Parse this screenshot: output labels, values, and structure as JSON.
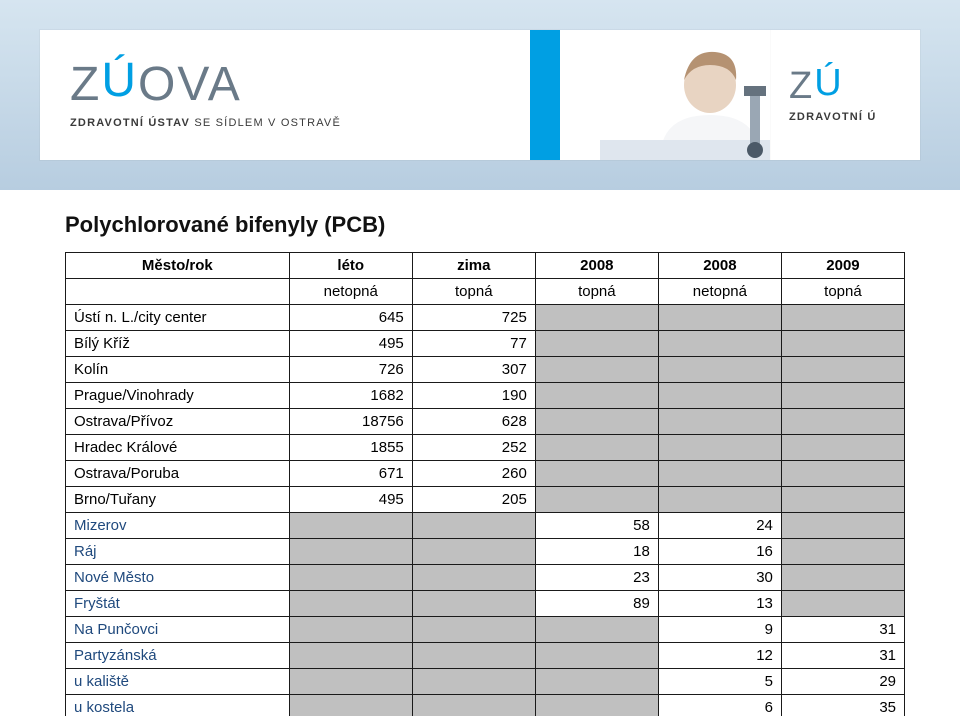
{
  "brand": {
    "logo_pre": "Z",
    "logo_dash": "ú",
    "logo_post": "OVA",
    "sub_strong": "ZDRAVOTNÍ ÚSTAV",
    "sub_rest": " SE SÍDLEM V OSTRAVĚ",
    "right_pre": "Z",
    "right_dash": "ú",
    "right_post": "",
    "right_sub_strong": "ZDRAVOTNÍ Ú",
    "right_sub_rest": ""
  },
  "title": "Polychlorované bifenyly (PCB)",
  "columns": {
    "c0": "Město/rok",
    "c1": "léto",
    "c2": "zima",
    "c3": "2008",
    "c4": "2008",
    "c5": "2009"
  },
  "subheader": {
    "c1": "netopná",
    "c2": "topná",
    "c3": "topná",
    "c4": "netopná",
    "c5": "topná"
  },
  "rows": [
    {
      "label": "Ústí n. L./city center",
      "v1": "645",
      "v2": "725",
      "g3": true,
      "g4": true,
      "g5": true,
      "blue": false
    },
    {
      "label": "Bílý Kříž",
      "v1": "495",
      "v2": "77",
      "g3": true,
      "g4": true,
      "g5": true,
      "blue": false
    },
    {
      "label": "Kolín",
      "v1": "726",
      "v2": "307",
      "g3": true,
      "g4": true,
      "g5": true,
      "blue": false
    },
    {
      "label": "Prague/Vinohrady",
      "v1": "1682",
      "v2": "190",
      "g3": true,
      "g4": true,
      "g5": true,
      "blue": false
    },
    {
      "label": "Ostrava/Přívoz",
      "v1": "18756",
      "v2": "628",
      "g3": true,
      "g4": true,
      "g5": true,
      "blue": false
    },
    {
      "label": "Hradec Králové",
      "v1": "1855",
      "v2": "252",
      "g3": true,
      "g4": true,
      "g5": true,
      "blue": false
    },
    {
      "label": "Ostrava/Poruba",
      "v1": "671",
      "v2": "260",
      "g3": true,
      "g4": true,
      "g5": true,
      "blue": false
    },
    {
      "label": "Brno/Tuřany",
      "v1": "495",
      "v2": "205",
      "g3": true,
      "g4": true,
      "g5": true,
      "blue": false
    },
    {
      "label": "Mizerov",
      "g1": true,
      "g2": true,
      "v3": "58",
      "v4": "24",
      "g5": true,
      "blue": true
    },
    {
      "label": "Ráj",
      "g1": true,
      "g2": true,
      "v3": "18",
      "v4": "16",
      "g5": true,
      "blue": true
    },
    {
      "label": "Nové Město",
      "g1": true,
      "g2": true,
      "v3": "23",
      "v4": "30",
      "g5": true,
      "blue": true
    },
    {
      "label": "Fryštát",
      "g1": true,
      "g2": true,
      "v3": "89",
      "v4": "13",
      "g5": true,
      "blue": true
    },
    {
      "label": "Na Punčovci",
      "g1": true,
      "g2": true,
      "g3": true,
      "v4": "9",
      "v5": "31",
      "blue": true
    },
    {
      "label": "Partyzánská",
      "g1": true,
      "g2": true,
      "g3": true,
      "v4": "12",
      "v5": "31",
      "blue": true
    },
    {
      "label": "u kaliště",
      "g1": true,
      "g2": true,
      "g3": true,
      "v4": "5",
      "v5": "29",
      "blue": true
    },
    {
      "label": "u kostela",
      "g1": true,
      "g2": true,
      "g3": true,
      "v4": "6",
      "v5": "35",
      "blue": true
    }
  ],
  "style": {
    "grey": "#c0c0c0",
    "border": "#1a1a1a",
    "blue_text": "#1f497d"
  }
}
